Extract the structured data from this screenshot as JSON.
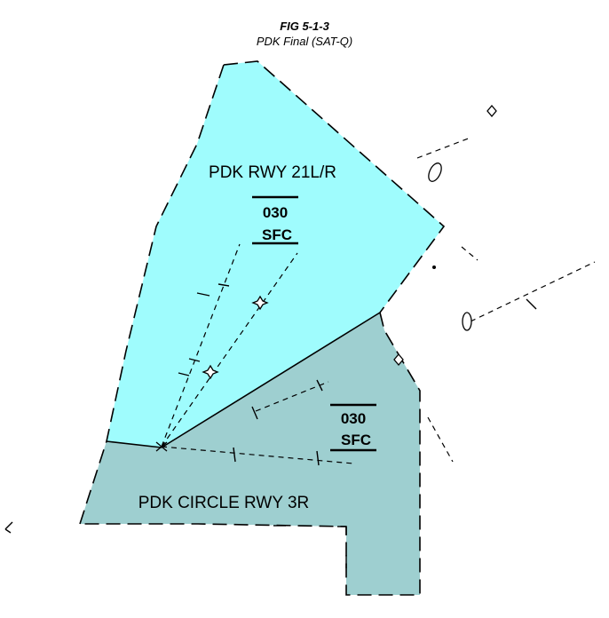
{
  "figure": {
    "number": "FIG 5-1-3",
    "caption": "PDK Final (SAT-Q)"
  },
  "areas": [
    {
      "name": "PDK RWY 21L/R",
      "ceiling": "030",
      "floor": "SFC",
      "fill_color": "#9ffcfd"
    },
    {
      "name": "PDK CIRCLE RWY 3R",
      "ceiling": "030",
      "floor": "SFC",
      "fill_color": "#9ecfd0"
    }
  ],
  "colors": {
    "line": "#000000",
    "background": "#ffffff"
  }
}
